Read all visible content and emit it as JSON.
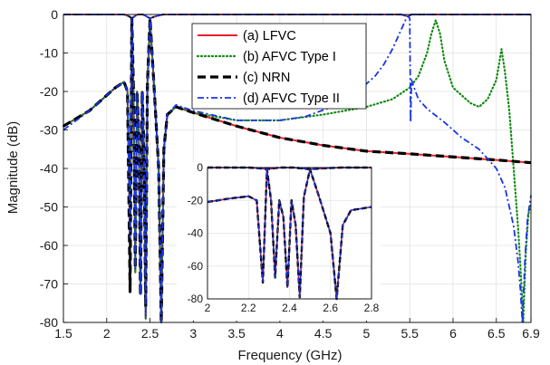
{
  "chart_data": {
    "type": "line",
    "title": "",
    "xlabel": "Frequency (GHz)",
    "ylabel": "Magnitude (dB)",
    "xlim": [
      1.5,
      6.9
    ],
    "ylim": [
      -80,
      0
    ],
    "x_ticks": [
      "1.5",
      "2",
      "2.5",
      "3",
      "3.5",
      "4",
      "4.5",
      "5",
      "5.5",
      "6",
      "6.5",
      "6.9"
    ],
    "y_ticks": [
      "0",
      "-10",
      "-20",
      "-30",
      "-40",
      "-50",
      "-60",
      "-70",
      "-80"
    ],
    "grid": true,
    "legend_position": "top-center",
    "series": [
      {
        "name": "(a) LFVC",
        "color": "#e8212b",
        "style": "solid",
        "x": [
          1.5,
          1.8,
          2.0,
          2.1,
          2.2,
          2.24,
          2.27,
          2.29,
          2.31,
          2.33,
          2.35,
          2.37,
          2.39,
          2.41,
          2.43,
          2.45,
          2.47,
          2.5,
          2.55,
          2.6,
          2.63,
          2.66,
          2.7,
          2.8,
          3.0,
          3.5,
          4.0,
          4.5,
          5.0,
          5.5,
          6.0,
          6.5,
          6.9
        ],
        "y": [
          -29,
          -25,
          -21,
          -19,
          -17.5,
          -20,
          -60,
          -1,
          -20,
          -67,
          -20,
          -30,
          -72,
          -20,
          -35,
          -79,
          -18,
          -1,
          -20,
          -40,
          -80,
          -35,
          -26,
          -24,
          -25.5,
          -29,
          -32,
          -34,
          -35.5,
          -36.2,
          -37,
          -37.8,
          -38.5
        ]
      },
      {
        "name": "(b) AFVC Type I",
        "color": "#138a13",
        "style": "dotted",
        "x": [
          1.5,
          1.8,
          2.0,
          2.1,
          2.2,
          2.24,
          2.27,
          2.29,
          2.31,
          2.33,
          2.35,
          2.37,
          2.39,
          2.41,
          2.43,
          2.45,
          2.47,
          2.5,
          2.55,
          2.6,
          2.63,
          2.66,
          2.7,
          2.8,
          3.0,
          3.5,
          4.0,
          4.5,
          5.0,
          5.3,
          5.5,
          5.6,
          5.7,
          5.75,
          5.8,
          5.85,
          5.9,
          6.0,
          6.2,
          6.3,
          6.4,
          6.5,
          6.56,
          6.6,
          6.65,
          6.7,
          6.75,
          6.78,
          6.81,
          6.84,
          6.87,
          6.9
        ],
        "y": [
          -29,
          -25,
          -21,
          -19,
          -17.5,
          -20,
          -60,
          -1,
          -20,
          -67,
          -20,
          -30,
          -72,
          -20,
          -35,
          -79,
          -18,
          -1,
          -20,
          -40,
          -80,
          -35,
          -26,
          -24,
          -25.5,
          -27.5,
          -27.5,
          -26,
          -24,
          -22,
          -19,
          -16,
          -10,
          -5,
          -1.5,
          -5,
          -12,
          -19,
          -23,
          -24,
          -22,
          -17,
          -9,
          -15,
          -25,
          -40,
          -55,
          -66,
          -80,
          -62,
          -52,
          -49
        ]
      },
      {
        "name": "(c) NRN",
        "color": "#000000",
        "style": "dashed-black",
        "x": [
          1.5,
          1.8,
          2.0,
          2.1,
          2.2,
          2.24,
          2.27,
          2.29,
          2.31,
          2.33,
          2.35,
          2.37,
          2.39,
          2.41,
          2.43,
          2.45,
          2.47,
          2.5,
          2.55,
          2.6,
          2.63,
          2.66,
          2.7,
          2.8,
          3.0,
          3.5,
          4.0,
          4.5,
          5.0,
          5.5,
          6.0,
          6.5,
          6.9
        ],
        "y": [
          -29,
          -25,
          -21,
          -19,
          -17.5,
          -20,
          -72,
          -1,
          -20,
          -66,
          -20,
          -30,
          -73,
          -20,
          -35,
          -76,
          -18,
          -1,
          -20,
          -40,
          -80,
          -35,
          -26,
          -24,
          -25.5,
          -29,
          -32,
          -34,
          -35.5,
          -36.2,
          -37,
          -37.8,
          -38.5
        ]
      },
      {
        "name": "(d) AFVC Type II",
        "color": "#1a35e8",
        "style": "dashdot",
        "x": [
          1.5,
          1.8,
          2.0,
          2.1,
          2.2,
          2.24,
          2.27,
          2.29,
          2.31,
          2.33,
          2.35,
          2.37,
          2.39,
          2.41,
          2.43,
          2.45,
          2.47,
          2.5,
          2.55,
          2.6,
          2.63,
          2.66,
          2.7,
          2.8,
          3.0,
          3.5,
          4.0,
          4.3,
          4.6,
          4.9,
          5.1,
          5.2,
          5.3,
          5.4,
          5.45,
          5.48,
          5.5,
          5.51,
          5.52,
          5.55,
          5.6,
          5.7,
          5.9,
          6.1,
          6.3,
          6.5,
          6.6,
          6.7,
          6.75,
          6.78,
          6.8,
          6.83,
          6.86,
          6.9
        ],
        "y": [
          -30,
          -25,
          -21,
          -19,
          -17.5,
          -20,
          -58,
          -1,
          -20,
          -66,
          -20,
          -30,
          -73,
          -20,
          -35,
          -79,
          -18,
          -1,
          -20,
          -40,
          -80,
          -35,
          -26,
          -23.5,
          -25,
          -27.5,
          -27.5,
          -26.5,
          -24,
          -20,
          -16,
          -13,
          -9,
          -4,
          -1.5,
          -0.5,
          -1,
          -28,
          -17,
          -19,
          -22,
          -24.5,
          -28,
          -32,
          -35,
          -40,
          -45,
          -55,
          -64,
          -72,
          -80,
          -64,
          -53,
          -47
        ]
      }
    ],
    "passband": {
      "color_note": "horizontal lines near 0 dB across range with dips",
      "x": [
        1.5,
        2.2,
        2.26,
        2.29,
        2.32,
        2.36,
        2.42,
        2.46,
        2.5,
        2.56,
        2.65,
        3.0,
        4.0,
        5.0,
        5.4,
        5.48,
        5.52,
        5.6,
        5.7,
        6.0,
        6.5,
        6.9
      ],
      "y": [
        0,
        0,
        -0.5,
        -1,
        -0.5,
        0,
        0,
        -0.5,
        -1,
        -0.5,
        0,
        0,
        0,
        0,
        0,
        -0.5,
        0,
        0,
        0,
        0,
        0,
        0
      ]
    },
    "inset": {
      "xlim": [
        2,
        2.8
      ],
      "ylim": [
        -80,
        0
      ],
      "x_ticks": [
        "2",
        "2.2",
        "2.4",
        "2.6",
        "2.8"
      ],
      "y_ticks": [
        "0",
        "-20",
        "-40",
        "-60",
        "-80"
      ],
      "x": [
        2.0,
        2.1,
        2.2,
        2.24,
        2.27,
        2.29,
        2.31,
        2.33,
        2.35,
        2.37,
        2.39,
        2.41,
        2.43,
        2.45,
        2.47,
        2.5,
        2.55,
        2.6,
        2.63,
        2.66,
        2.7,
        2.8
      ],
      "y": [
        -21,
        -19,
        -17.5,
        -20,
        -70,
        -1,
        -20,
        -67,
        -20,
        -30,
        -73,
        -20,
        -35,
        -79,
        -18,
        -1,
        -20,
        -40,
        -80,
        -35,
        -26,
        -24
      ]
    }
  }
}
